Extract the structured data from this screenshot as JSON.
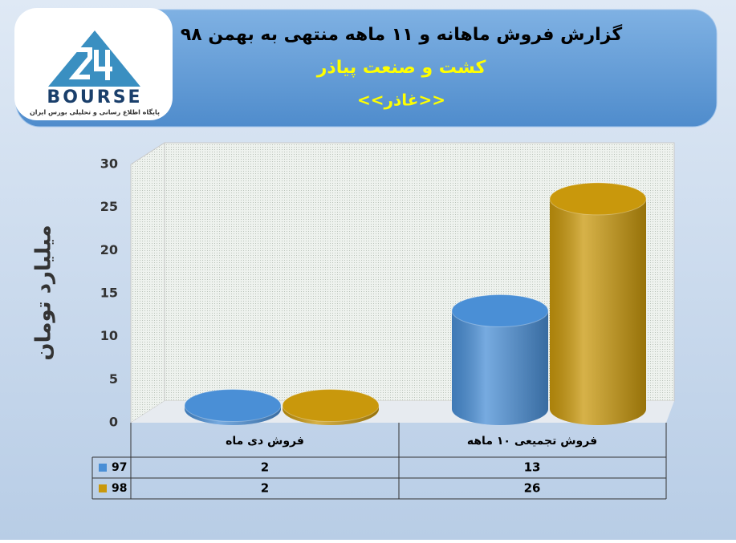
{
  "logo": {
    "text": "BOURSE",
    "tagline": "پایگاه اطلاع رسانی و تحلیلی بورس ایران"
  },
  "chart_data": {
    "type": "bar",
    "title": "گزارش فروش ماهانه و ۱۱ ماهه منتهی به بهمن ۹۸",
    "subtitle": "کشت و صنعت پیاذر",
    "annotations": [
      "<<غاذر>>"
    ],
    "y_label": "میلیارد تومان",
    "categories": [
      "فروش دی ماه",
      "فروش تجمیعی ۱۰ ماهه"
    ],
    "series": [
      {
        "name": "97",
        "color": "#4a8fd6",
        "values": [
          2,
          13
        ]
      },
      {
        "name": "98",
        "color": "#c9980c",
        "values": [
          2,
          26
        ]
      }
    ],
    "ylim": [
      0,
      30
    ],
    "yticks": [
      0,
      5,
      10,
      15,
      20,
      25,
      30
    ]
  }
}
